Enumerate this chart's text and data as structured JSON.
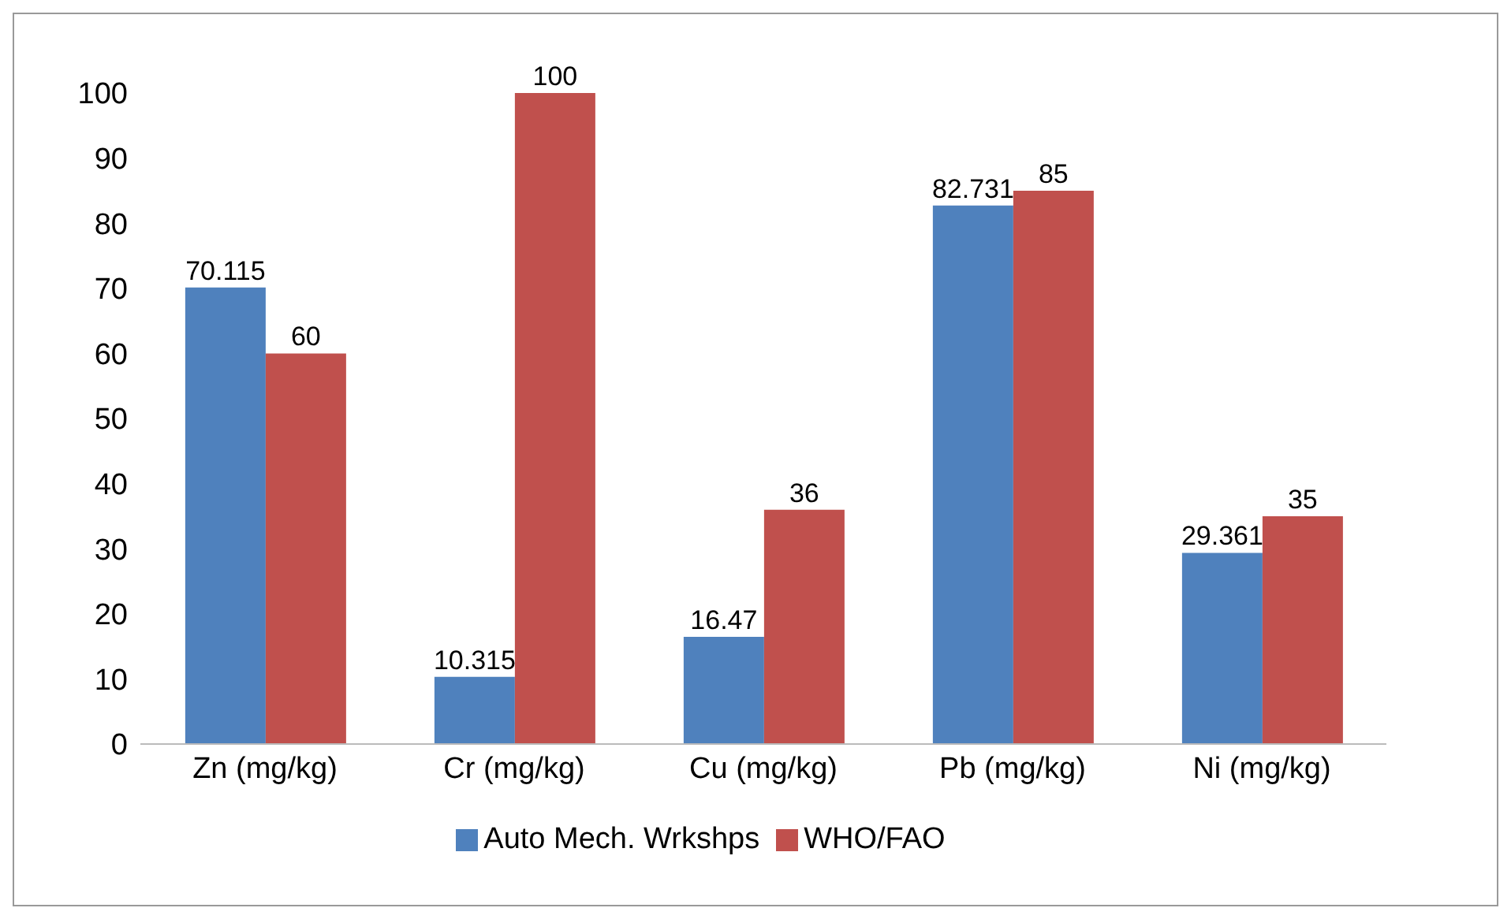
{
  "chart_data": {
    "type": "bar",
    "categories": [
      "Zn (mg/kg)",
      "Cr (mg/kg)",
      "Cu (mg/kg)",
      "Pb (mg/kg)",
      "Ni (mg/kg)"
    ],
    "series": [
      {
        "name": "Auto Mech. Wrkshps",
        "color": "#4f81bd",
        "values": [
          70.115,
          10.315,
          16.47,
          82.731,
          29.361
        ]
      },
      {
        "name": "WHO/FAO",
        "color": "#c0504d",
        "values": [
          60,
          100,
          36,
          85,
          35
        ]
      }
    ],
    "ylim": [
      0,
      100
    ],
    "yticks": [
      0,
      10,
      20,
      30,
      40,
      50,
      60,
      70,
      80,
      90,
      100
    ],
    "data_labels": true,
    "legend": "bottom",
    "grid": false
  }
}
